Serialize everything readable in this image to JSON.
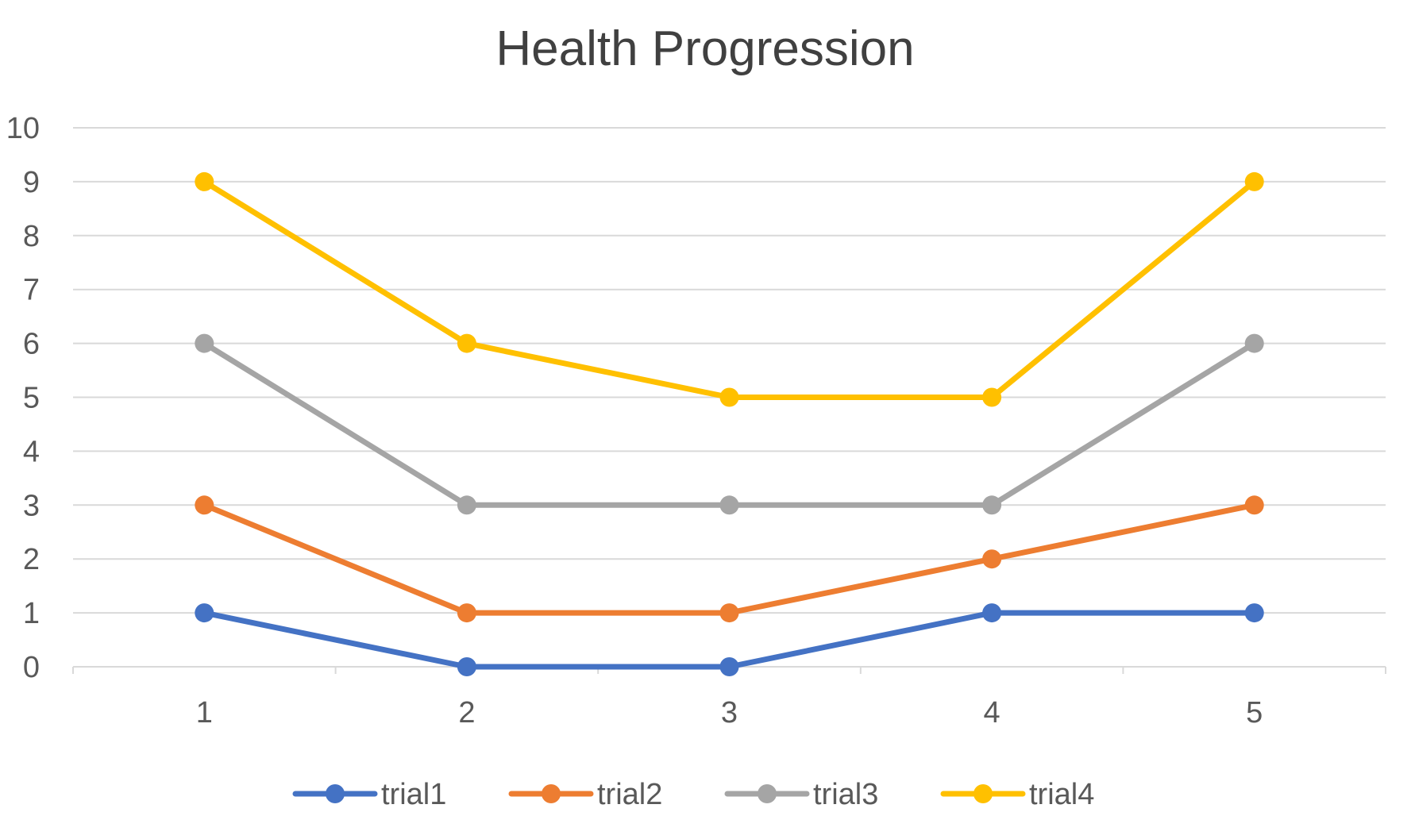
{
  "chart_data": {
    "type": "line",
    "title": "Health Progression",
    "xlabel": "",
    "ylabel": "",
    "categories": [
      "1",
      "2",
      "3",
      "4",
      "5"
    ],
    "ylim": [
      0,
      10
    ],
    "yticks": [
      "0",
      "1",
      "2",
      "3",
      "4",
      "5",
      "6",
      "7",
      "8",
      "9",
      "10"
    ],
    "grid": true,
    "legend_position": "bottom",
    "series": [
      {
        "name": "trial1",
        "color": "#4472C4",
        "values": [
          1,
          0,
          0,
          1,
          1
        ]
      },
      {
        "name": "trial2",
        "color": "#ED7D31",
        "values": [
          3,
          1,
          1,
          2,
          3
        ]
      },
      {
        "name": "trial3",
        "color": "#A5A5A5",
        "values": [
          6,
          3,
          3,
          3,
          6
        ]
      },
      {
        "name": "trial4",
        "color": "#FFC000",
        "values": [
          9,
          6,
          5,
          5,
          9
        ]
      }
    ]
  }
}
